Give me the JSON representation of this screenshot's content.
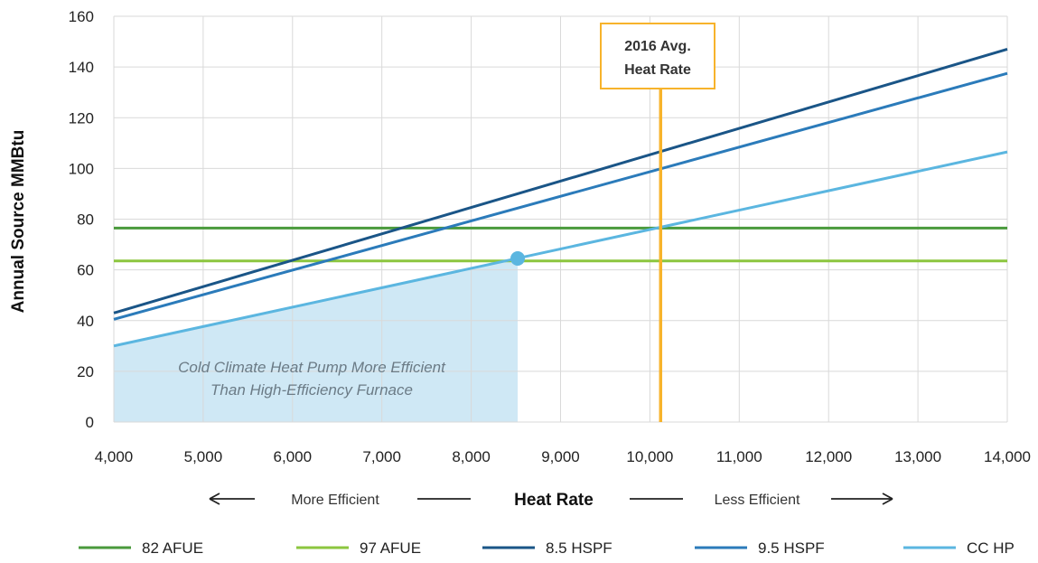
{
  "chart_data": {
    "type": "line",
    "ylabel": "Annual Source MMBtu",
    "xlabel": "Heat Rate",
    "xlim": [
      4000,
      14000
    ],
    "ylim": [
      0,
      160
    ],
    "x_ticks": [
      4000,
      5000,
      6000,
      7000,
      8000,
      9000,
      10000,
      11000,
      12000,
      13000,
      14000
    ],
    "x_tick_labels": [
      "4,000",
      "5,000",
      "6,000",
      "7,000",
      "8,000",
      "9,000",
      "10,000",
      "11,000",
      "12,000",
      "13,000",
      "14,000"
    ],
    "y_ticks": [
      0,
      20,
      40,
      60,
      80,
      100,
      120,
      140,
      160
    ],
    "y_tick_labels": [
      "0",
      "20",
      "40",
      "60",
      "80",
      "100",
      "120",
      "140",
      "160"
    ],
    "grid": true,
    "legend_position": "bottom",
    "series": [
      {
        "name": "82 AFUE",
        "color": "#4a9a3c",
        "x": [
          4000,
          14000
        ],
        "y": [
          76.5,
          76.5
        ]
      },
      {
        "name": "97 AFUE",
        "color": "#8cc63f",
        "x": [
          4000,
          14000
        ],
        "y": [
          63.5,
          63.5
        ]
      },
      {
        "name": "8.5 HSPF",
        "color": "#1a5587",
        "x": [
          4000,
          14000
        ],
        "y": [
          43,
          147
        ]
      },
      {
        "name": "9.5 HSPF",
        "color": "#2b7bba",
        "x": [
          4000,
          14000
        ],
        "y": [
          40.5,
          137.5
        ]
      },
      {
        "name": "CC HP",
        "color": "#5bb6e0",
        "x": [
          4000,
          14000
        ],
        "y": [
          30,
          106.5
        ]
      }
    ],
    "vertical_line": {
      "x": 10120,
      "color": "#f7b32b",
      "label_line1": "2016 Avg.",
      "label_line2": "Heat Rate"
    },
    "marker": {
      "x": 8520,
      "y": 64.5,
      "color": "#5bb6e0"
    },
    "shaded_region": {
      "x_start": 4000,
      "x_end": 8520,
      "color": "#cfe8f5",
      "annotation_line1": "Cold Climate Heat Pump More Efficient",
      "annotation_line2": "Than High-Efficiency Furnace"
    },
    "axis_arrows": {
      "left_text": "More Efficient",
      "right_text": "Less Efficient"
    }
  }
}
